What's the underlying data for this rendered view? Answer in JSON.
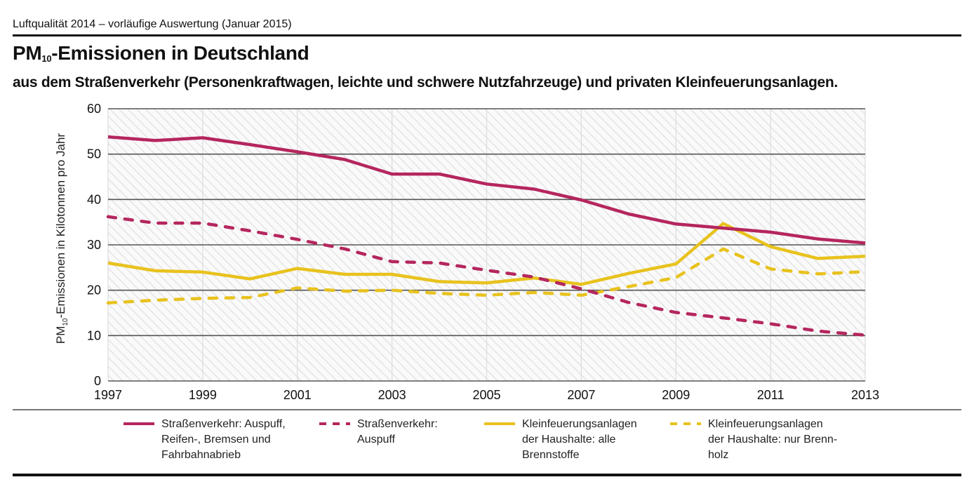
{
  "header": {
    "kicker": "Luftqualität 2014 – vorläufige Auswertung (Januar 2015)",
    "title_prefix": "PM",
    "title_sub": "10",
    "title_rest": "-Emissionen in Deutschland",
    "subtitle": "aus dem Straßenverkehr (Personenkraftwagen, leichte und schwere Nutzfahrzeuge) und privaten Kleinfeuerungsanlagen."
  },
  "colors": {
    "road": "#b5265e",
    "household": "#e8c21e",
    "grid": "#555555",
    "hatch": "#e6e6e6"
  },
  "chart_data": {
    "type": "line",
    "title": "PM10-Emissionen in Deutschland",
    "xlabel": "",
    "ylabel_prefix": "PM",
    "ylabel_sub": "10",
    "ylabel_rest": "-Emissionen in Kilotonnen pro Jahr",
    "ylabel": "PM10-Emissionen in Kilotonnen pro Jahr",
    "ylim": [
      0,
      60
    ],
    "xlim": [
      1997,
      2013
    ],
    "yticks": [
      0,
      10,
      20,
      30,
      40,
      50,
      60
    ],
    "xticks": [
      1997,
      1999,
      2001,
      2003,
      2005,
      2007,
      2009,
      2011,
      2013
    ],
    "grid": true,
    "legend_position": "bottom",
    "x": [
      1997,
      1998,
      1999,
      2000,
      2001,
      2002,
      2003,
      2004,
      2005,
      2006,
      2007,
      2008,
      2009,
      2010,
      2011,
      2012,
      2013
    ],
    "series": [
      {
        "name": "Straßenverkehr: Auspuff, Reifen-, Bremsen und Fahrbahnabrieb",
        "legend_label": "Straßenverkehr: Auspuff,\nReifen-, Bremsen und\nFahrbahnabrieb",
        "color_key": "road",
        "dashed": false,
        "values": [
          53.8,
          53.0,
          53.6,
          52.1,
          50.5,
          48.8,
          45.6,
          45.6,
          43.4,
          42.3,
          39.9,
          36.8,
          34.6,
          33.7,
          32.8,
          31.3,
          30.4
        ]
      },
      {
        "name": "Straßenverkehr: Auspuff",
        "legend_label": "Straßenverkehr:\nAuspuff",
        "color_key": "road",
        "dashed": true,
        "values": [
          36.2,
          34.8,
          34.8,
          33.1,
          31.2,
          29.1,
          26.3,
          26.0,
          24.4,
          22.9,
          20.3,
          17.3,
          15.1,
          13.9,
          12.6,
          11.0,
          10.1
        ]
      },
      {
        "name": "Kleinfeuerungsanlagen der Haushalte: alle Brennstoffe",
        "legend_label": "Kleinfeuerungsanlagen\nder Haushalte: alle\nBrennstoffe",
        "color_key": "household",
        "dashed": false,
        "values": [
          26.0,
          24.3,
          24.0,
          22.5,
          24.8,
          23.5,
          23.5,
          21.9,
          21.6,
          22.7,
          21.3,
          23.7,
          25.8,
          34.7,
          29.6,
          27.0,
          27.5
        ]
      },
      {
        "name": "Kleinfeuerungsanlagen der Haushalte: nur Brennholz",
        "legend_label": "Kleinfeuerungsanlagen\nder Haushalte: nur Brenn-\nholz",
        "color_key": "household",
        "dashed": true,
        "values": [
          17.2,
          17.8,
          18.2,
          18.4,
          20.5,
          19.8,
          20.0,
          19.3,
          18.9,
          19.5,
          18.9,
          20.8,
          22.8,
          29.1,
          24.7,
          23.6,
          24.1
        ]
      }
    ]
  }
}
